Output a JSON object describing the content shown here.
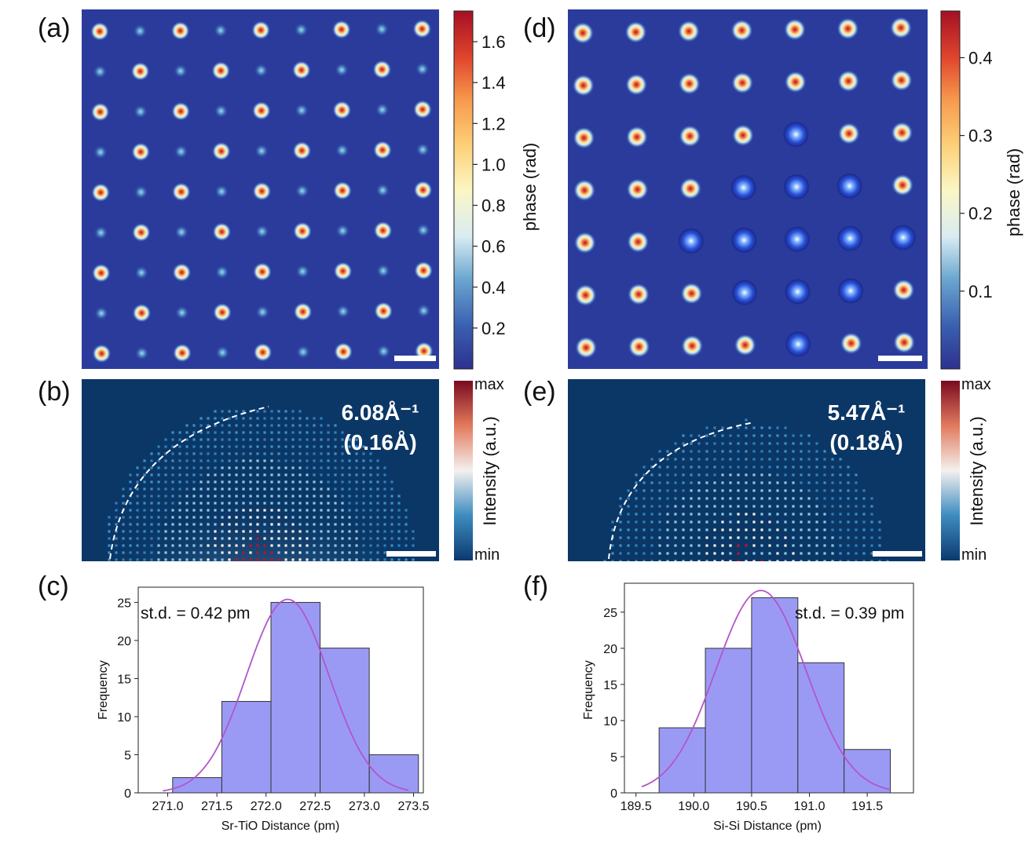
{
  "panels": {
    "a": "(a)",
    "b": "(b)",
    "c": "(c)",
    "d": "(d)",
    "e": "(e)",
    "f": "(f)"
  },
  "colorbar_a": {
    "label": "phase (rad)",
    "ticks": [
      "0.2",
      "0.4",
      "0.6",
      "0.8",
      "1.0",
      "1.2",
      "1.4",
      "1.6"
    ],
    "tick_values": [
      0.2,
      0.4,
      0.6,
      0.8,
      1.0,
      1.2,
      1.4,
      1.6
    ],
    "range": [
      0.0,
      1.75
    ]
  },
  "colorbar_d": {
    "label": "phase (rad)",
    "ticks": [
      "0.1",
      "0.2",
      "0.3",
      "0.4"
    ],
    "tick_values": [
      0.1,
      0.2,
      0.3,
      0.4
    ],
    "range": [
      0.0,
      0.46
    ]
  },
  "colorbar_b": {
    "label": "Intensity (a.u.)",
    "max": "max",
    "min": "min"
  },
  "colorbar_e": {
    "label": "Intensity (a.u.)",
    "max": "max",
    "min": "min"
  },
  "diffraction_b": {
    "line1": "6.08Å⁻¹",
    "line2": "(0.16Å)"
  },
  "diffraction_e": {
    "line1": "5.47Å⁻¹",
    "line2": "(0.18Å)"
  },
  "colors": {
    "background_map": "#2b3b9c",
    "diffraction_bg": "#0b3766",
    "histogram_fill": "#9a9af5",
    "fit_line": "#b256c9"
  },
  "chart_data": [
    {
      "type": "bar",
      "panel": "c",
      "xlabel": "Sr-TiO Distance (pm)",
      "ylabel": "Frequency",
      "annotation": "st.d. = 0.42 pm",
      "bin_edges": [
        271.05,
        271.55,
        272.05,
        272.55,
        273.05,
        273.55
      ],
      "values": [
        2,
        12,
        25,
        19,
        5
      ],
      "xticks": [
        271.0,
        271.5,
        272.0,
        272.5,
        273.0,
        273.5
      ],
      "xtick_labels": [
        "271.0",
        "271.5",
        "272.0",
        "272.5",
        "273.0",
        "273.5"
      ],
      "yticks": [
        0,
        5,
        10,
        15,
        20,
        25
      ],
      "ytick_labels": [
        "0",
        "5",
        "10",
        "15",
        "20",
        "25"
      ],
      "xlim": [
        270.7,
        273.6
      ],
      "ylim": [
        0,
        27
      ],
      "fit": {
        "mean": 272.22,
        "sigma": 0.42,
        "peak": 25.4,
        "range": [
          270.95,
          273.45
        ]
      }
    },
    {
      "type": "bar",
      "panel": "f",
      "xlabel": "Si-Si Distance (pm)",
      "ylabel": "Frequency",
      "annotation": "st.d. = 0.39 pm",
      "bin_edges": [
        189.7,
        190.1,
        190.5,
        190.9,
        191.3,
        191.7
      ],
      "values": [
        9,
        20,
        27,
        18,
        6
      ],
      "xticks": [
        189.5,
        190.0,
        190.5,
        191.0,
        191.5
      ],
      "xtick_labels": [
        "189.5",
        "190.0",
        "190.5",
        "191.0",
        "191.5"
      ],
      "yticks": [
        0,
        5,
        10,
        15,
        20,
        25
      ],
      "ytick_labels": [
        "0",
        "5",
        "10",
        "15",
        "20",
        "25"
      ],
      "xlim": [
        189.4,
        191.9
      ],
      "ylim": [
        0,
        29
      ],
      "fit": {
        "mean": 190.58,
        "sigma": 0.39,
        "peak": 28.0,
        "range": [
          189.55,
          191.7
        ]
      }
    }
  ]
}
